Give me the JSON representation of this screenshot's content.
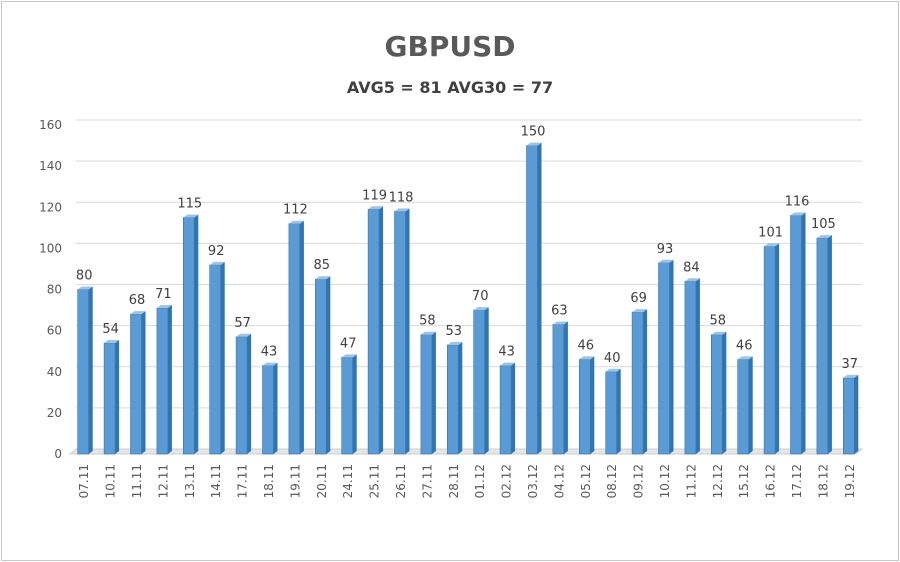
{
  "chart_data": {
    "type": "bar",
    "title": "GBPUSD",
    "subtitle": "AVG5 = 81 AVG30 = 77",
    "xlabel": "",
    "ylabel": "",
    "ylim": [
      0,
      160
    ],
    "yticks": [
      0,
      20,
      40,
      60,
      80,
      100,
      120,
      140,
      160
    ],
    "grid": true,
    "bar_color": "#5b9bd5",
    "categories": [
      "07.11",
      "10.11",
      "11.11",
      "12.11",
      "13.11",
      "14.11",
      "17.11",
      "18.11",
      "19.11",
      "20.11",
      "24.11",
      "25.11",
      "26.11",
      "27.11",
      "28.11",
      "01.12",
      "02.12",
      "03.12",
      "04.12",
      "05.12",
      "08.12",
      "09.12",
      "10.12",
      "11.12",
      "12.12",
      "15.12",
      "16.12",
      "17.12",
      "18.12",
      "19.12"
    ],
    "values": [
      80,
      54,
      68,
      71,
      115,
      92,
      57,
      43,
      112,
      85,
      47,
      119,
      118,
      58,
      53,
      70,
      43,
      150,
      63,
      46,
      40,
      69,
      93,
      84,
      58,
      46,
      101,
      116,
      105,
      37
    ]
  }
}
